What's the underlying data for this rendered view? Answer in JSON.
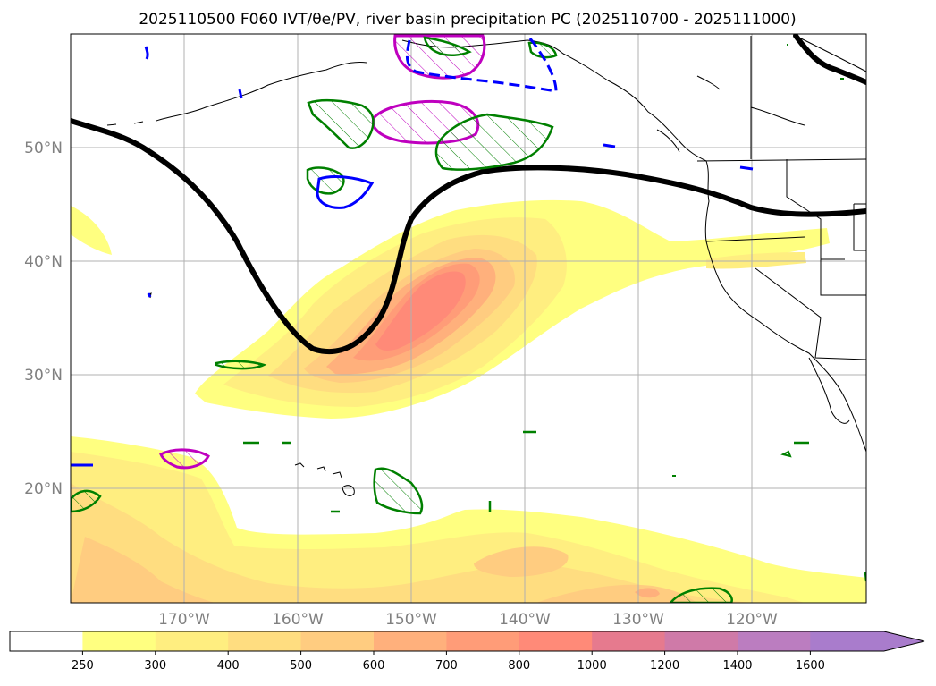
{
  "title": "2025110500 F060 IVT/θe/PV, river basin precipitation PC (2025110700 - 2025111000)",
  "map": {
    "lon_range": [
      -180,
      -110
    ],
    "lat_range": [
      10,
      60
    ],
    "lon_tick_labels": [
      {
        "lon": -170,
        "label": "170°W"
      },
      {
        "lon": -160,
        "label": "160°W"
      },
      {
        "lon": -150,
        "label": "150°W"
      },
      {
        "lon": -140,
        "label": "140°W"
      },
      {
        "lon": -130,
        "label": "130°W"
      },
      {
        "lon": -120,
        "label": "120°W"
      }
    ],
    "lat_tick_labels": [
      {
        "lat": 50,
        "label": "50°N"
      },
      {
        "lat": 40,
        "label": "40°N"
      },
      {
        "lat": 30,
        "label": "30°N"
      },
      {
        "lat": 20,
        "label": "20°N"
      }
    ],
    "gridlines": true
  },
  "colorbar": {
    "ticks": [
      "250",
      "300",
      "400",
      "500",
      "600",
      "700",
      "800",
      "1000",
      "1200",
      "1400",
      "1600"
    ],
    "colors": [
      "#ffffff",
      "#ffff80",
      "#ffee80",
      "#ffdd80",
      "#ffcc80",
      "#ffb07c",
      "#ff9c78",
      "#ff8a78",
      "#e67a8e",
      "#cf7aa8",
      "#bb7dc0",
      "#a97ccc"
    ],
    "extend": "max"
  },
  "colors": {
    "jet_contour": "#000000",
    "green_contour": "#008000",
    "magenta_contour": "#bf00bf",
    "blue_contour": "#0000ff",
    "coastline": "#000000",
    "grid": "#b0b0b0"
  }
}
